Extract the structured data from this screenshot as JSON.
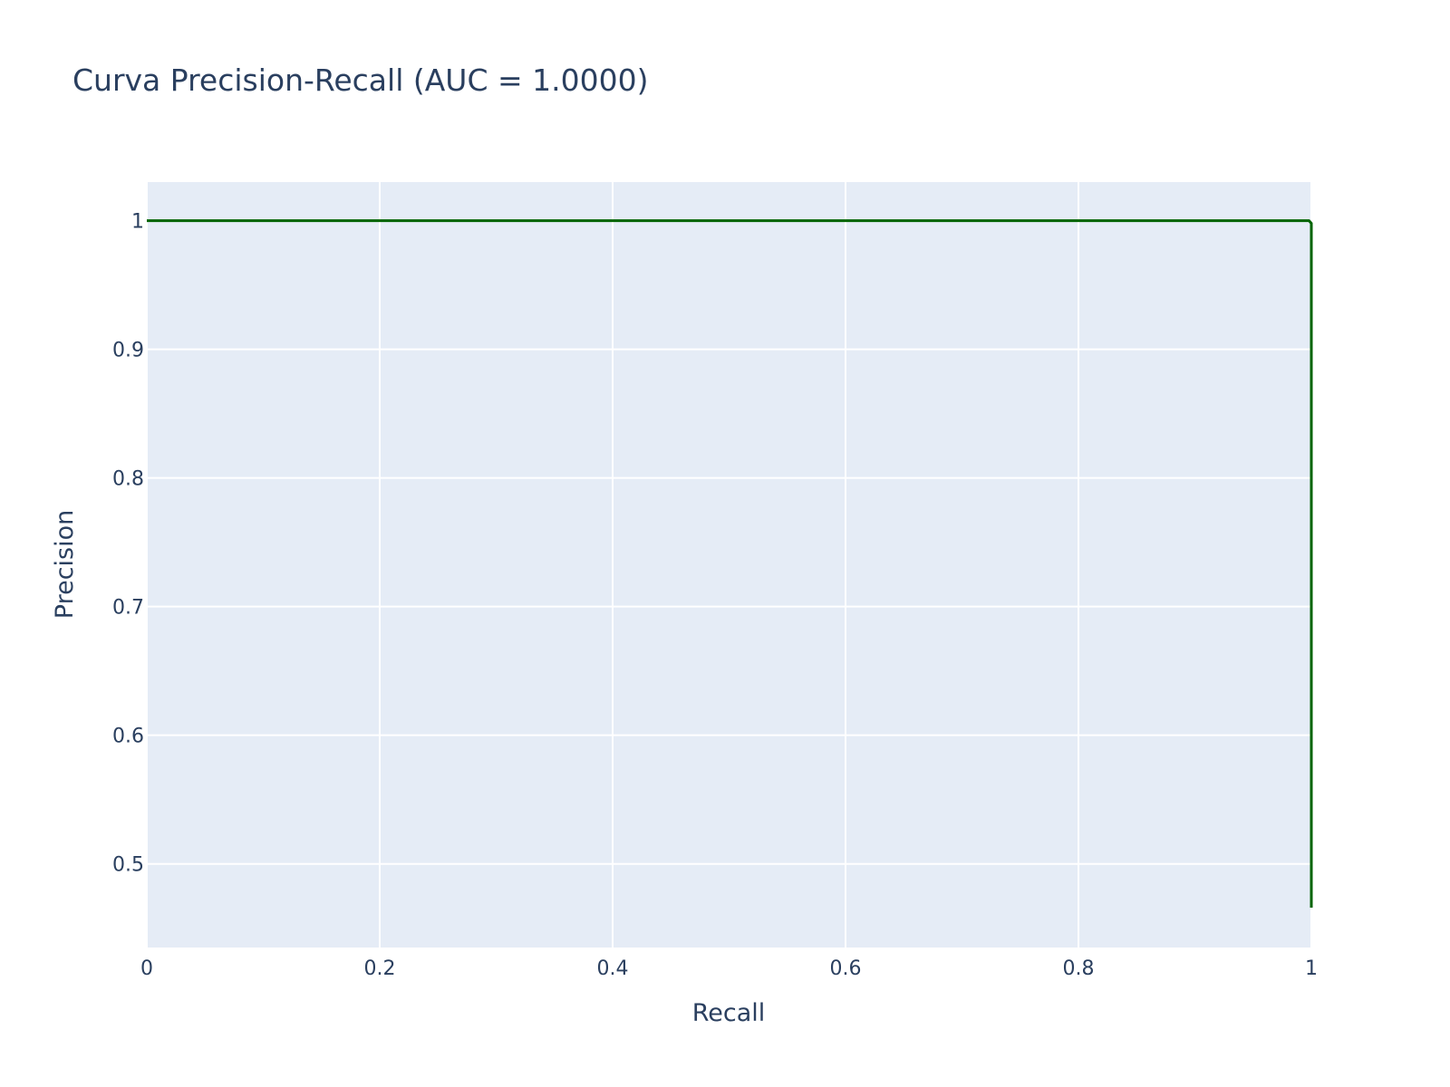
{
  "chart_data": {
    "type": "line",
    "title": "Curva Precision-Recall (AUC = 1.0000)",
    "xlabel": "Recall",
    "ylabel": "Precision",
    "xlim": [
      0,
      1
    ],
    "ylim": [
      0.435,
      1.03
    ],
    "x_ticks": [
      0,
      0.2,
      0.4,
      0.6,
      0.8,
      1
    ],
    "x_tick_labels": [
      "0",
      "0.2",
      "0.4",
      "0.6",
      "0.8",
      "1"
    ],
    "y_ticks": [
      0.5,
      0.6,
      0.7,
      0.8,
      0.9,
      1
    ],
    "y_tick_labels": [
      "0.5",
      "0.6",
      "0.7",
      "0.8",
      "0.9",
      "1"
    ],
    "grid": true,
    "legend": "none",
    "series": [
      {
        "color": "#006400",
        "x": [
          0,
          0.1,
          0.2,
          0.3,
          0.4,
          0.5,
          0.6,
          0.7,
          0.8,
          0.9,
          0.998,
          1,
          1
        ],
        "y": [
          1,
          1,
          1,
          1,
          1,
          1,
          1,
          1,
          1,
          1,
          1,
          0.998,
          0.466
        ]
      }
    ],
    "colors": {
      "plot_background": "#e5ecf6",
      "grid": "#ffffff",
      "text": "#2a3f5f",
      "line": "#006400"
    }
  }
}
